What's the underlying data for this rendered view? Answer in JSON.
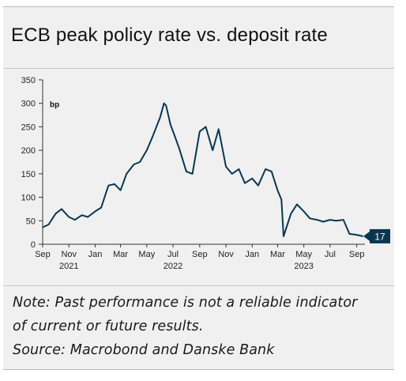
{
  "title": "ECB peak policy rate vs. deposit rate",
  "notes": {
    "line1": "Note: Past performance is not a reliable indicator",
    "line2": "of current or future results.",
    "source": "Source: Macrobond and Danske Bank"
  },
  "chart_data": {
    "type": "line",
    "title": "",
    "ylabel": "bp",
    "xlabel": "",
    "ylim": [
      0,
      350
    ],
    "yticks": [
      0,
      50,
      100,
      150,
      200,
      250,
      300,
      350
    ],
    "grid": false,
    "month_ticks": [
      "Sep",
      "Nov",
      "Jan",
      "Mar",
      "May",
      "Jul",
      "Sep",
      "Nov",
      "Jan",
      "Mar",
      "May",
      "Jul",
      "Sep"
    ],
    "year_labels": [
      "2021",
      "2022",
      "2023"
    ],
    "last_value_label": "17",
    "line_color": "#0b3650",
    "series": [
      {
        "x": [
          "2021-09-01",
          "2021-09-15",
          "2021-10-01",
          "2021-10-15",
          "2021-11-01",
          "2021-11-15",
          "2021-12-01",
          "2021-12-15",
          "2022-01-01",
          "2022-01-15",
          "2022-02-01",
          "2022-02-15",
          "2022-03-01",
          "2022-03-15",
          "2022-04-01",
          "2022-04-15",
          "2022-05-01",
          "2022-05-15",
          "2022-06-01",
          "2022-06-10",
          "2022-06-15",
          "2022-06-25",
          "2022-07-01",
          "2022-07-15",
          "2022-08-01",
          "2022-08-15",
          "2022-09-01",
          "2022-09-15",
          "2022-10-01",
          "2022-10-15",
          "2022-11-01",
          "2022-11-15",
          "2022-12-01",
          "2022-12-15",
          "2023-01-01",
          "2023-01-15",
          "2023-02-01",
          "2023-02-15",
          "2023-03-01",
          "2023-03-10",
          "2023-03-15",
          "2023-04-01",
          "2023-04-15",
          "2023-05-01",
          "2023-05-15",
          "2023-06-01",
          "2023-06-15",
          "2023-07-01",
          "2023-07-15",
          "2023-08-01",
          "2023-08-15",
          "2023-09-01",
          "2023-09-15"
        ],
        "values": [
          36,
          42,
          65,
          75,
          58,
          52,
          62,
          58,
          70,
          78,
          125,
          128,
          115,
          150,
          170,
          175,
          200,
          230,
          270,
          300,
          295,
          255,
          240,
          205,
          155,
          150,
          240,
          250,
          200,
          245,
          165,
          150,
          160,
          130,
          140,
          125,
          160,
          155,
          115,
          95,
          17,
          65,
          85,
          70,
          55,
          52,
          48,
          52,
          50,
          52,
          22,
          20,
          17
        ]
      }
    ]
  }
}
